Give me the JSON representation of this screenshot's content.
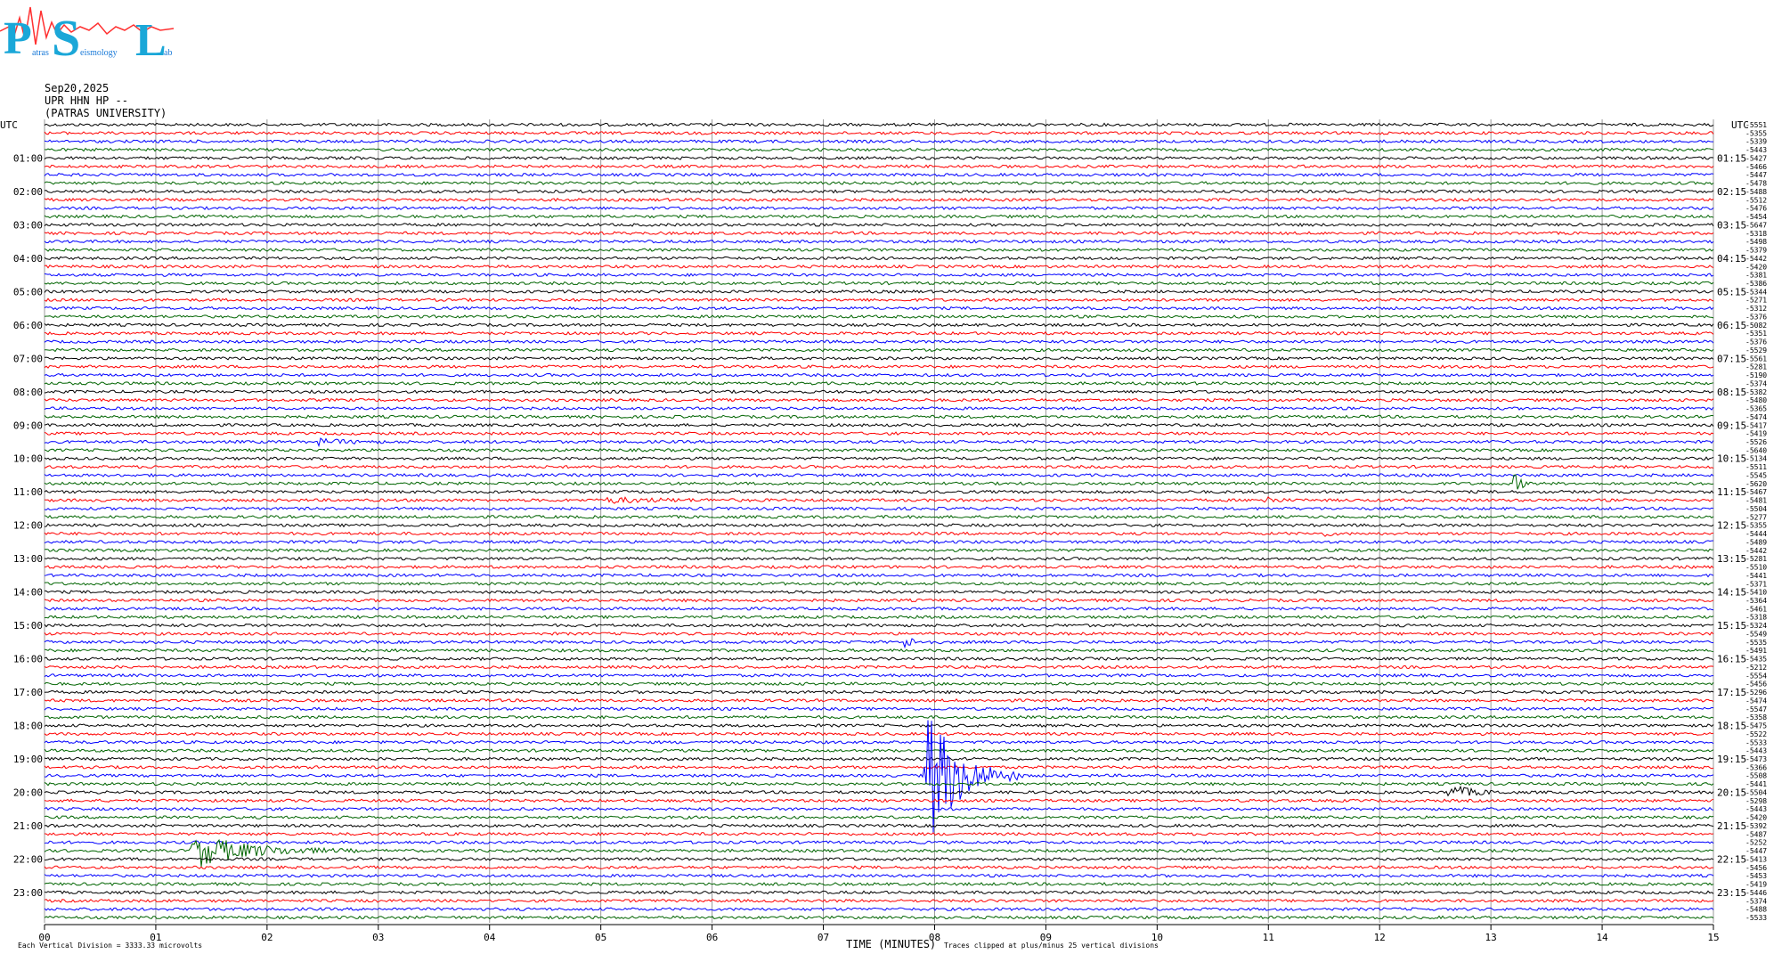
{
  "logo": {
    "letters": [
      "P",
      "S",
      "L"
    ],
    "small_text": [
      "atras",
      "eismology",
      "ab"
    ]
  },
  "header": {
    "date": "Sep20,2025",
    "station": "UPR HHN HP --",
    "institution": "(PATRAS UNIVERSITY)"
  },
  "chart_data": {
    "type": "line",
    "title": "",
    "xlabel": "TIME (MINUTES)",
    "ylabel": "",
    "x_ticks": [
      "00",
      "01",
      "02",
      "03",
      "04",
      "05",
      "06",
      "07",
      "08",
      "09",
      "10",
      "11",
      "12",
      "13",
      "14",
      "15"
    ],
    "xlim": [
      0,
      15
    ],
    "left_axis_label": "UTC",
    "right_axis_label": "UTC",
    "left_hour_labels": [
      "01:00",
      "02:00",
      "03:00",
      "04:00",
      "05:00",
      "06:00",
      "07:00",
      "08:00",
      "09:00",
      "10:00",
      "11:00",
      "12:00",
      "13:00",
      "14:00",
      "15:00",
      "16:00",
      "17:00",
      "18:00",
      "19:00",
      "20:00",
      "21:00",
      "22:00",
      "23:00"
    ],
    "right_hour_labels": [
      "01:15",
      "02:15",
      "03:15",
      "04:15",
      "05:15",
      "06:15",
      "07:15",
      "08:15",
      "09:15",
      "10:15",
      "11:15",
      "12:15",
      "13:15",
      "14:15",
      "15:15",
      "16:15",
      "17:15",
      "18:15",
      "19:15",
      "20:15",
      "21:15",
      "22:15",
      "23:15"
    ],
    "trace_count": 96,
    "trace_colors": [
      "#000000",
      "#ff0000",
      "#0000ff",
      "#006400"
    ],
    "offsets": [
      "-5551",
      "-5355",
      "-5339",
      "-5443",
      "-5427",
      "-5466",
      "-5447",
      "-5478",
      "-5488",
      "-5512",
      "-5476",
      "-5454",
      "-5647",
      "-5318",
      "-5498",
      "-5379",
      "-5442",
      "-5420",
      "-5381",
      "-5386",
      "-5344",
      "-5271",
      "-5312",
      "-5376",
      "-5082",
      "-5351",
      "-5376",
      "-5529",
      "-5561",
      "-5281",
      "-5190",
      "-5374",
      "-5382",
      "-5480",
      "-5365",
      "-5474",
      "-5417",
      "-5419",
      "-5526",
      "-5640",
      "-5134",
      "-5511",
      "-5545",
      "-5620",
      "-5467",
      "-5481",
      "-5504",
      "-5277",
      "-5355",
      "-5444",
      "-5489",
      "-5442",
      "-5281",
      "-5510",
      "-5441",
      "-5371",
      "-5410",
      "-5364",
      "-5461",
      "-5318",
      "-5324",
      "-5549",
      "-5535",
      "-5491",
      "-5435",
      "-5212",
      "-5554",
      "-5456",
      "-5296",
      "-5474",
      "-5547",
      "-5358",
      "-5475",
      "-5522",
      "-5533",
      "-5443",
      "-5473",
      "-5366",
      "-5508",
      "-5441",
      "-5504",
      "-5298",
      "-5443",
      "-5420",
      "-5392",
      "-5487",
      "-5252",
      "-5447",
      "-5413",
      "-5456",
      "-5453",
      "-5419",
      "-5446",
      "-5374",
      "-5488",
      "-5533"
    ],
    "events": [
      {
        "trace": 38,
        "start_min": 2.4,
        "end_min": 3.2,
        "amp": 4,
        "color_note": "noise band"
      },
      {
        "trace": 43,
        "start_min": 13.2,
        "end_min": 13.4,
        "amp": 14
      },
      {
        "trace": 45,
        "start_min": 10.95,
        "end_min": 11.2,
        "amp": 8
      },
      {
        "trace": 45,
        "start_min": 5.0,
        "end_min": 6.6,
        "amp": 3
      },
      {
        "trace": 49,
        "start_min": 11.5,
        "end_min": 11.65,
        "amp": 4
      },
      {
        "trace": 62,
        "start_min": 7.7,
        "end_min": 8.1,
        "amp": 7
      },
      {
        "trace": 78,
        "start_min": 7.9,
        "end_min": 8.8,
        "amp": 95
      },
      {
        "trace": 80,
        "start_min": 12.6,
        "end_min": 13.2,
        "amp": 10
      },
      {
        "trace": 87,
        "start_min": 1.3,
        "end_min": 2.8,
        "amp": 22
      },
      {
        "trace": 94,
        "start_min": 14.4,
        "end_min": 14.6,
        "amp": 6
      }
    ],
    "footer_left": "Each Vertical Division = 3333.33 microvolts",
    "footer_right": "Traces clipped at plus/minus 25 vertical divisions",
    "grid": true
  }
}
